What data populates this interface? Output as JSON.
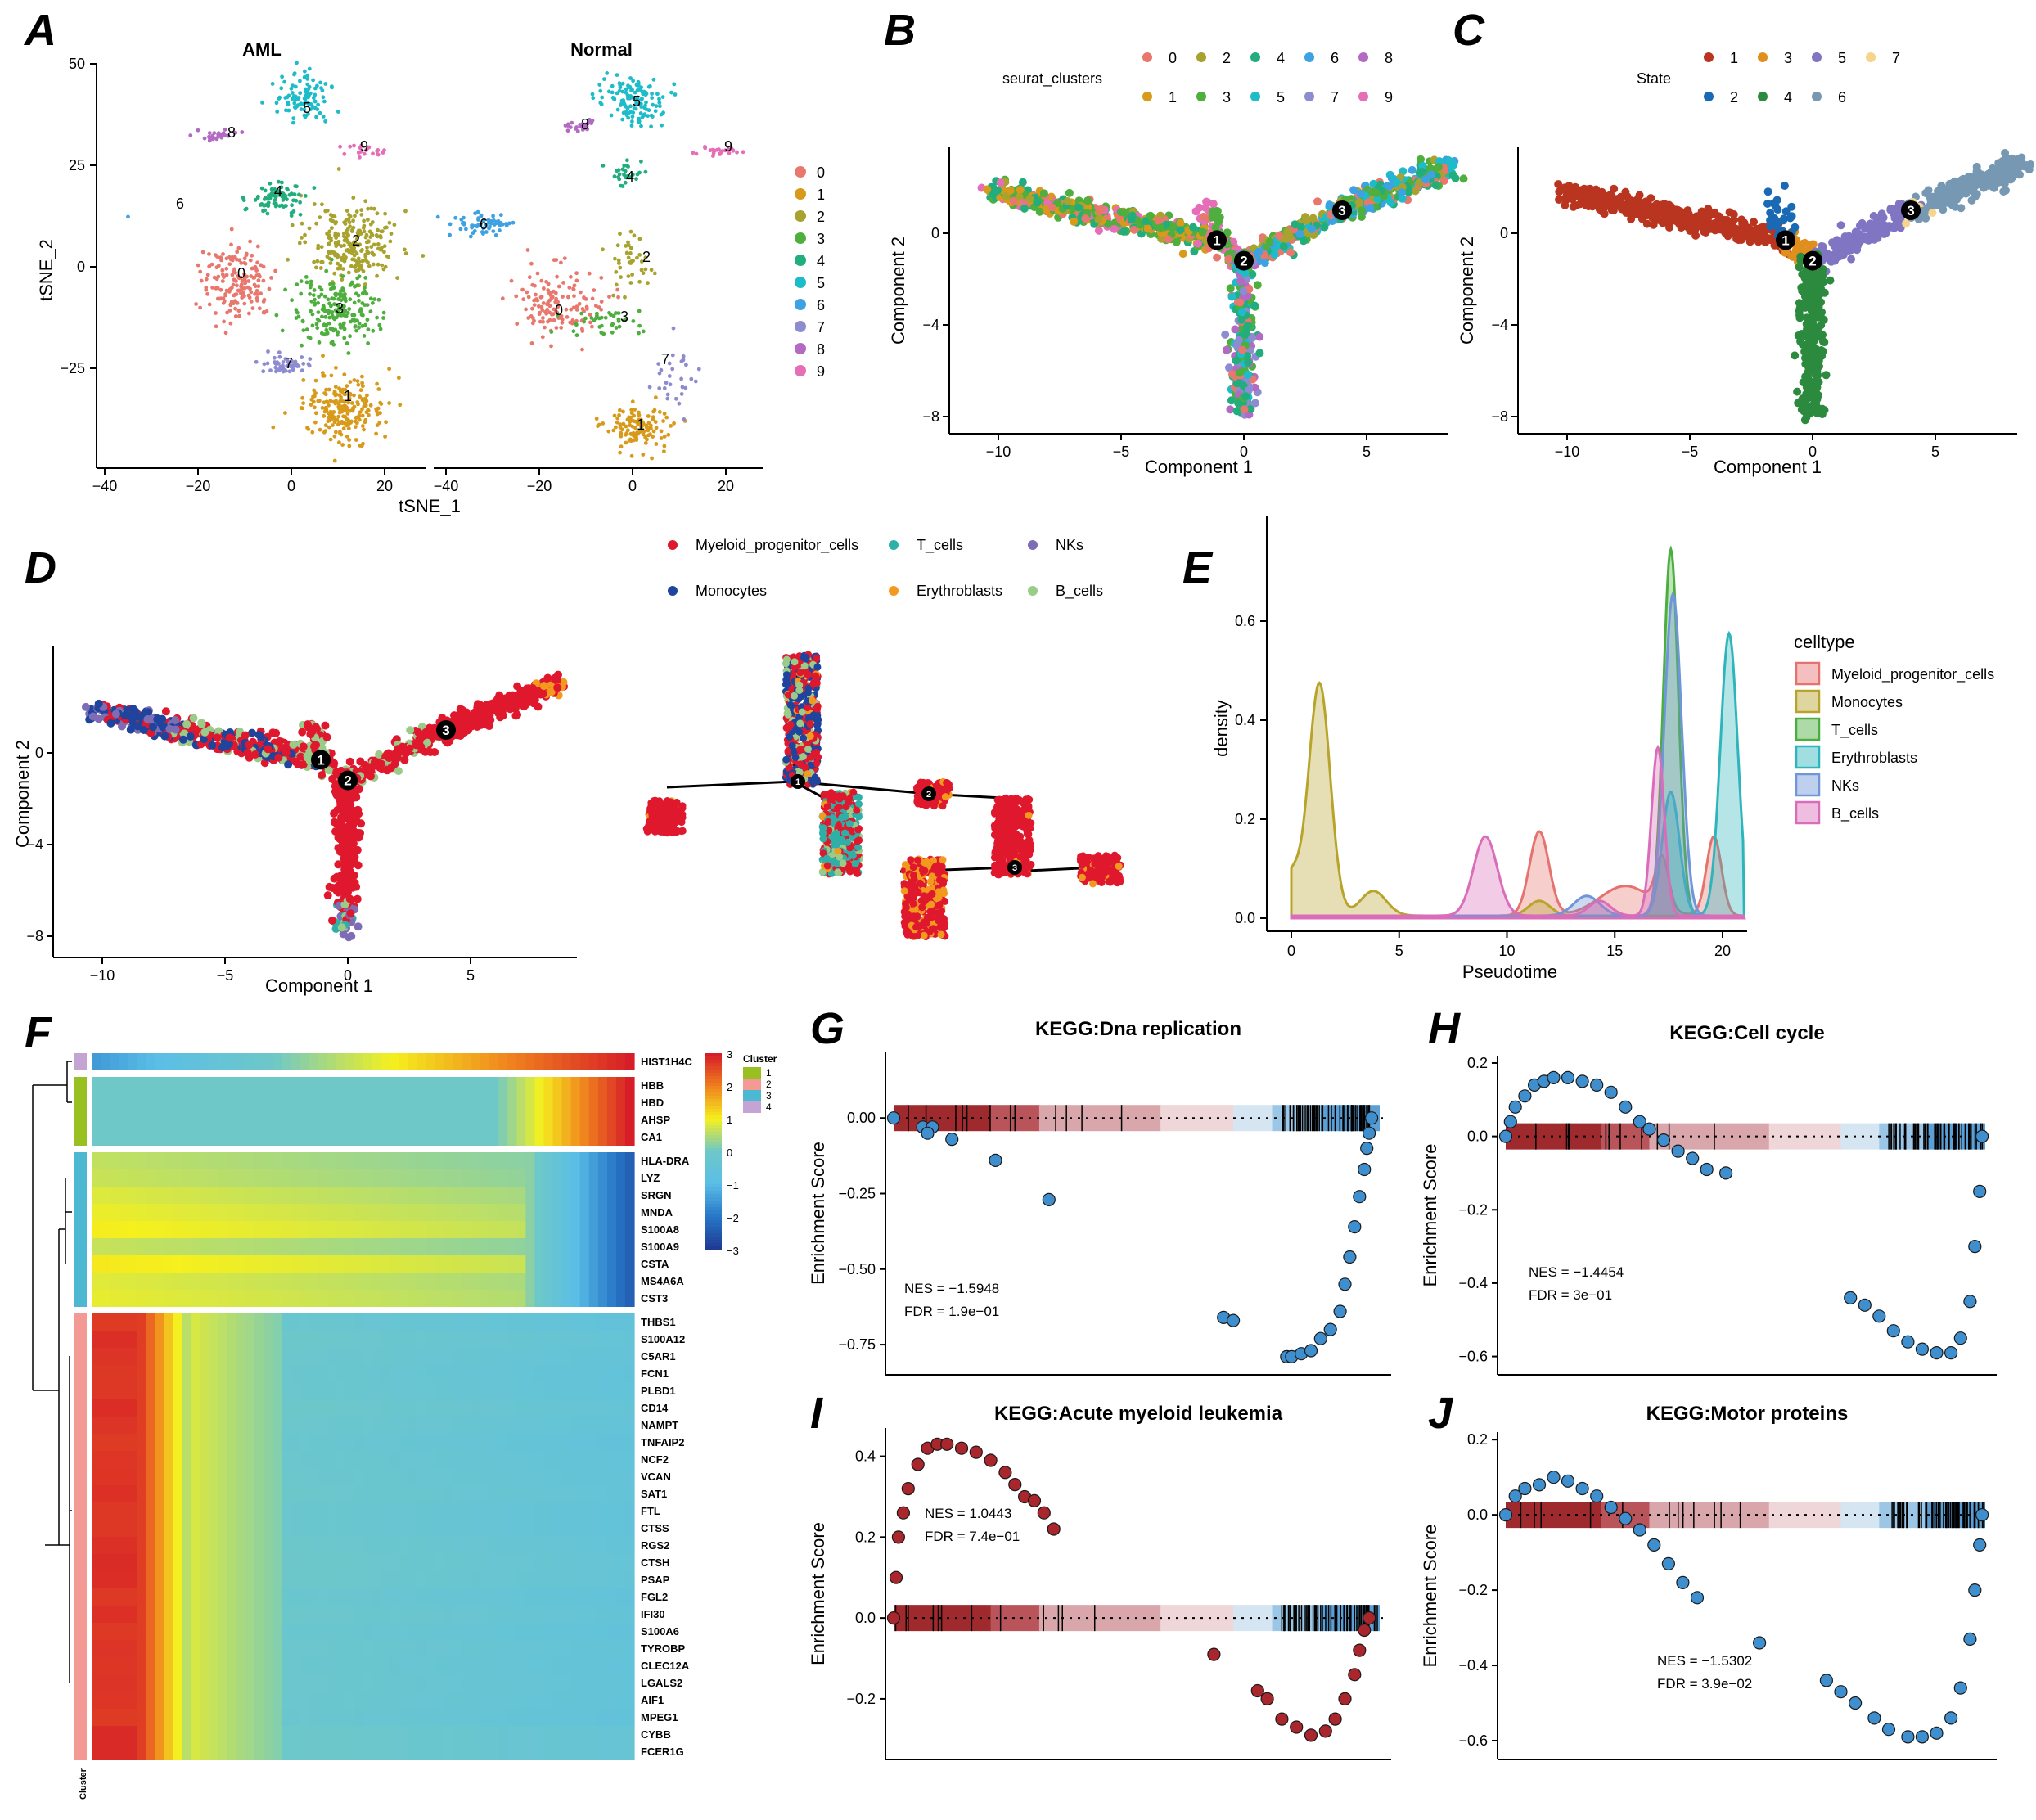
{
  "panel_letters": [
    "A",
    "B",
    "C",
    "D",
    "E",
    "F",
    "G",
    "H",
    "I",
    "J"
  ],
  "colors": {
    "cluster": [
      "#E8786E",
      "#D89A1A",
      "#A8A22E",
      "#4EAE3E",
      "#22AE7C",
      "#1EBCC8",
      "#3EA2E2",
      "#8E8CD0",
      "#B26AC2",
      "#E66EB6"
    ],
    "state": [
      "#B9351F",
      "#1A69B5",
      "#E08E1E",
      "#2C8A3E",
      "#7F75C2",
      "#7698B2",
      "#F6D48C"
    ],
    "celltype": {
      "Myeloid_progenitor_cells": "#E0182E",
      "Monocytes": "#1E449E",
      "T_cells": "#2EB0A8",
      "Erythroblasts": "#F39A1E",
      "NKs": "#7E6DB4",
      "B_cells": "#9ACB88"
    },
    "density": [
      "#E6726E",
      "#B8A42A",
      "#4CAE3E",
      "#2EB5BC",
      "#6E96D8",
      "#DA6DB9"
    ],
    "gsea_blue": "#3F8FCF",
    "gsea_red": "#A8262C"
  },
  "panelA": {
    "facets": [
      "AML",
      "Normal"
    ],
    "xlabel": "tSNE_1",
    "ylabel": "tSNE_2",
    "xticks": [
      "−40",
      "−20",
      "0",
      "20"
    ],
    "yticks": [
      "50",
      "25",
      "0",
      "−25"
    ],
    "legend": [
      "0",
      "1",
      "2",
      "3",
      "4",
      "5",
      "6",
      "7",
      "8",
      "9"
    ],
    "aml_labels": [
      "5",
      "8",
      "9",
      "4",
      "6",
      "2",
      "0",
      "3",
      "7",
      "1"
    ],
    "normal_labels": [
      "5",
      "8",
      "9",
      "4",
      "6",
      "2",
      "0",
      "3",
      "7",
      "1"
    ]
  },
  "panelB": {
    "legend_title": "seurat_clusters",
    "legend_row1": [
      "0",
      "2",
      "4",
      "6",
      "8"
    ],
    "legend_row2": [
      "1",
      "3",
      "5",
      "7",
      "9"
    ],
    "xlabel": "Component 1",
    "ylabel": "Component 2",
    "xticks": [
      "−10",
      "−5",
      "0",
      "5"
    ],
    "yticks": [
      "0",
      "−4",
      "−8"
    ],
    "nodes": [
      "1",
      "2",
      "3"
    ]
  },
  "panelC": {
    "legend_title": "State",
    "legend_row1": [
      "1",
      "3",
      "5",
      "7"
    ],
    "legend_row2": [
      "2",
      "4",
      "6"
    ],
    "xlabel": "Component 1",
    "ylabel": "Component 2",
    "xticks": [
      "−10",
      "−5",
      "0",
      "5"
    ],
    "yticks": [
      "0",
      "−4",
      "−8"
    ],
    "nodes": [
      "1",
      "2",
      "3"
    ]
  },
  "panelD": {
    "legend": [
      "Myeloid_progenitor_cells",
      "T_cells",
      "NKs",
      "Monocytes",
      "Erythroblasts",
      "B_cells"
    ],
    "xlabel": "Component 1",
    "ylabel": "Component 2",
    "xticks": [
      "−10",
      "−5",
      "0",
      "5"
    ],
    "yticks": [
      "0",
      "−4",
      "−8"
    ],
    "nodes": [
      "1",
      "2",
      "3"
    ],
    "tree_nodes": [
      "1",
      "2",
      "3"
    ]
  },
  "chart_data": [
    {
      "panel": "E",
      "type": "area",
      "title": "",
      "xlabel": "Pseudotime",
      "ylabel": "density",
      "xlim": [
        0,
        21
      ],
      "ylim": [
        0,
        0.75
      ],
      "xticks": [
        "0",
        "5",
        "10",
        "15",
        "20"
      ],
      "yticks": [
        "0.0",
        "0.2",
        "0.4",
        "0.6"
      ],
      "legend_title": "celltype",
      "series": [
        {
          "name": "Myeloid_progenitor_cells",
          "peaks": [
            [
              11.5,
              0.17,
              0.45
            ],
            [
              15.5,
              0.06,
              1.2
            ],
            [
              17.2,
              0.1,
              0.3
            ],
            [
              19.6,
              0.16,
              0.35
            ]
          ]
        },
        {
          "name": "Monocytes",
          "peaks": [
            [
              1.3,
              0.47,
              0.5
            ],
            [
              0.0,
              0.08,
              0.4
            ],
            [
              3.8,
              0.05,
              0.6
            ],
            [
              11.5,
              0.03,
              0.5
            ]
          ]
        },
        {
          "name": "T_cells",
          "peaks": [
            [
              17.6,
              0.74,
              0.35
            ]
          ]
        },
        {
          "name": "Erythroblasts",
          "peaks": [
            [
              20.3,
              0.57,
              0.4
            ],
            [
              17.6,
              0.25,
              0.4
            ]
          ]
        },
        {
          "name": "NKs",
          "peaks": [
            [
              17.7,
              0.65,
              0.4
            ],
            [
              13.7,
              0.04,
              0.6
            ]
          ]
        },
        {
          "name": "B_cells",
          "peaks": [
            [
              9.0,
              0.16,
              0.55
            ],
            [
              17.0,
              0.34,
              0.3
            ],
            [
              14.3,
              0.03,
              0.5
            ]
          ]
        }
      ]
    },
    {
      "panel": "F",
      "type": "heatmap",
      "title": "",
      "genes": [
        "HIST1H4C",
        "HBB",
        "HBD",
        "AHSP",
        "CA1",
        "HLA-DRA",
        "LYZ",
        "SRGN",
        "MNDA",
        "S100A8",
        "S100A9",
        "CSTA",
        "MS4A6A",
        "CST3",
        "THBS1",
        "S100A12",
        "C5AR1",
        "FCN1",
        "PLBD1",
        "CD14",
        "NAMPT",
        "TNFAIP2",
        "NCF2",
        "VCAN",
        "SAT1",
        "FTL",
        "CTSS",
        "RGS2",
        "CTSH",
        "PSAP",
        "FGL2",
        "IFI30",
        "S100A6",
        "TYROBP",
        "CLEC12A",
        "LGALS2",
        "AIF1",
        "MPEG1",
        "CYBB",
        "FCER1G"
      ],
      "gene_cluster": [
        4,
        1,
        1,
        1,
        1,
        3,
        3,
        3,
        3,
        3,
        3,
        3,
        3,
        3,
        2,
        2,
        2,
        2,
        2,
        2,
        2,
        2,
        2,
        2,
        2,
        2,
        2,
        2,
        2,
        2,
        2,
        2,
        2,
        2,
        2,
        2,
        2,
        2,
        2,
        2
      ],
      "cluster_legend_title": "Cluster",
      "cluster_labels": [
        "1",
        "2",
        "3",
        "4"
      ],
      "cluster_colors": [
        "#99C021",
        "#F39A95",
        "#4DB8D2",
        "#C4A4D2"
      ],
      "scale_labels": [
        "3",
        "2",
        "1",
        "0",
        "−1",
        "−2",
        "−3"
      ],
      "scale_range": [
        -3,
        3
      ],
      "bottom_label": "Cluster"
    },
    {
      "panel": "G",
      "type": "scatter",
      "title": "KEGG:Dna replication",
      "ylabel": "Enrichment Score",
      "yticks": [
        "0.00",
        "−0.25",
        "−0.50",
        "−0.75"
      ],
      "ylim": [
        -0.85,
        0.22
      ],
      "nes": "NES = −1.5948",
      "fdr": "FDR = 1.9e−01",
      "color": "blue",
      "points": [
        [
          0.0,
          0.0
        ],
        [
          0.06,
          -0.03
        ],
        [
          0.08,
          -0.03
        ],
        [
          0.07,
          -0.05
        ],
        [
          0.12,
          -0.07
        ],
        [
          0.21,
          -0.14
        ],
        [
          0.32,
          -0.27
        ],
        [
          0.68,
          -0.66
        ],
        [
          0.7,
          -0.67
        ],
        [
          0.81,
          -0.79
        ],
        [
          0.82,
          -0.79
        ],
        [
          0.84,
          -0.78
        ],
        [
          0.86,
          -0.77
        ],
        [
          0.88,
          -0.73
        ],
        [
          0.9,
          -0.7
        ],
        [
          0.92,
          -0.64
        ],
        [
          0.93,
          -0.55
        ],
        [
          0.94,
          -0.46
        ],
        [
          0.95,
          -0.36
        ],
        [
          0.96,
          -0.26
        ],
        [
          0.97,
          -0.17
        ],
        [
          0.975,
          -0.1
        ],
        [
          0.98,
          -0.05
        ],
        [
          0.985,
          0.0
        ]
      ]
    },
    {
      "panel": "H",
      "type": "scatter",
      "title": "KEGG:Cell cycle",
      "ylabel": "Enrichment Score",
      "yticks": [
        "0.2",
        "0.0",
        "−0.2",
        "−0.4",
        "−0.6"
      ],
      "ylim": [
        -0.65,
        0.22
      ],
      "nes": "NES = −1.4454",
      "fdr": "FDR = 3e−01",
      "color": "blue",
      "points": [
        [
          0.0,
          0.0
        ],
        [
          0.01,
          0.04
        ],
        [
          0.02,
          0.08
        ],
        [
          0.04,
          0.11
        ],
        [
          0.06,
          0.14
        ],
        [
          0.08,
          0.15
        ],
        [
          0.1,
          0.16
        ],
        [
          0.13,
          0.16
        ],
        [
          0.16,
          0.15
        ],
        [
          0.19,
          0.14
        ],
        [
          0.22,
          0.12
        ],
        [
          0.25,
          0.08
        ],
        [
          0.28,
          0.04
        ],
        [
          0.3,
          0.02
        ],
        [
          0.33,
          -0.01
        ],
        [
          0.36,
          -0.04
        ],
        [
          0.39,
          -0.06
        ],
        [
          0.42,
          -0.09
        ],
        [
          0.46,
          -0.1
        ],
        [
          0.72,
          -0.44
        ],
        [
          0.75,
          -0.46
        ],
        [
          0.78,
          -0.49
        ],
        [
          0.81,
          -0.53
        ],
        [
          0.84,
          -0.56
        ],
        [
          0.87,
          -0.58
        ],
        [
          0.9,
          -0.59
        ],
        [
          0.93,
          -0.59
        ],
        [
          0.95,
          -0.55
        ],
        [
          0.97,
          -0.45
        ],
        [
          0.98,
          -0.3
        ],
        [
          0.99,
          -0.15
        ],
        [
          0.995,
          0.0
        ]
      ]
    },
    {
      "panel": "I",
      "type": "scatter",
      "title": "KEGG:Acute myeloid leukemia",
      "ylabel": "Enrichment Score",
      "yticks": [
        "0.4",
        "0.2",
        "0.0",
        "−0.2"
      ],
      "ylim": [
        -0.35,
        0.47
      ],
      "nes": "NES = 1.0443",
      "fdr": "FDR = 7.4e−01",
      "color": "red",
      "points": [
        [
          0.0,
          0.0
        ],
        [
          0.005,
          0.1
        ],
        [
          0.01,
          0.2
        ],
        [
          0.02,
          0.26
        ],
        [
          0.03,
          0.32
        ],
        [
          0.05,
          0.38
        ],
        [
          0.07,
          0.42
        ],
        [
          0.09,
          0.43
        ],
        [
          0.11,
          0.43
        ],
        [
          0.14,
          0.42
        ],
        [
          0.17,
          0.41
        ],
        [
          0.2,
          0.39
        ],
        [
          0.23,
          0.36
        ],
        [
          0.25,
          0.33
        ],
        [
          0.27,
          0.3
        ],
        [
          0.29,
          0.29
        ],
        [
          0.31,
          0.26
        ],
        [
          0.33,
          0.22
        ],
        [
          0.66,
          -0.09
        ],
        [
          0.75,
          -0.18
        ],
        [
          0.77,
          -0.2
        ],
        [
          0.8,
          -0.25
        ],
        [
          0.83,
          -0.27
        ],
        [
          0.86,
          -0.29
        ],
        [
          0.89,
          -0.28
        ],
        [
          0.91,
          -0.25
        ],
        [
          0.93,
          -0.2
        ],
        [
          0.95,
          -0.14
        ],
        [
          0.96,
          -0.08
        ],
        [
          0.97,
          -0.03
        ],
        [
          0.98,
          0.0
        ]
      ]
    },
    {
      "panel": "J",
      "type": "scatter",
      "title": "KEGG:Motor proteins",
      "ylabel": "Enrichment Score",
      "yticks": [
        "0.2",
        "0.0",
        "−0.2",
        "−0.4",
        "−0.6"
      ],
      "ylim": [
        -0.65,
        0.22
      ],
      "nes": "NES = −1.5302",
      "fdr": "FDR = 3.9e−02",
      "color": "blue",
      "points": [
        [
          0.0,
          0.0
        ],
        [
          0.02,
          0.05
        ],
        [
          0.04,
          0.07
        ],
        [
          0.07,
          0.08
        ],
        [
          0.1,
          0.1
        ],
        [
          0.13,
          0.09
        ],
        [
          0.16,
          0.07
        ],
        [
          0.19,
          0.05
        ],
        [
          0.22,
          0.02
        ],
        [
          0.25,
          -0.01
        ],
        [
          0.28,
          -0.04
        ],
        [
          0.31,
          -0.08
        ],
        [
          0.34,
          -0.13
        ],
        [
          0.37,
          -0.18
        ],
        [
          0.4,
          -0.22
        ],
        [
          0.53,
          -0.34
        ],
        [
          0.67,
          -0.44
        ],
        [
          0.7,
          -0.47
        ],
        [
          0.73,
          -0.5
        ],
        [
          0.77,
          -0.54
        ],
        [
          0.8,
          -0.57
        ],
        [
          0.84,
          -0.59
        ],
        [
          0.87,
          -0.59
        ],
        [
          0.9,
          -0.58
        ],
        [
          0.93,
          -0.54
        ],
        [
          0.95,
          -0.46
        ],
        [
          0.97,
          -0.33
        ],
        [
          0.98,
          -0.2
        ],
        [
          0.99,
          -0.08
        ],
        [
          0.995,
          0.0
        ]
      ]
    }
  ]
}
